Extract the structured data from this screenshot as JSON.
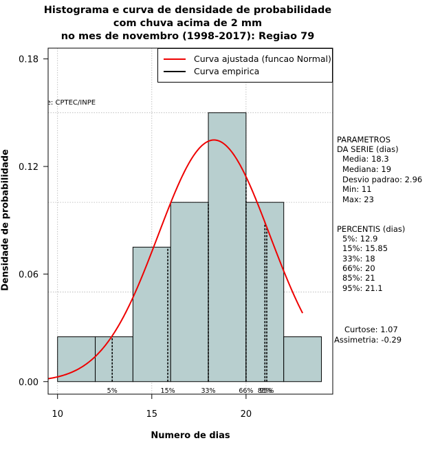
{
  "chart_data": {
    "type": "bar",
    "title_lines": [
      "Histograma e curva de densidade de probabilidade",
      "com chuva acima de 2 mm",
      "no mes de novembro (1998-2017): Regiao 79"
    ],
    "xlabel": "Numero de dias",
    "ylabel": "Densidade de probabilidade",
    "xlim": [
      9.5,
      24.6
    ],
    "ylim": [
      -0.007,
      0.186
    ],
    "x_ticks": [
      10,
      15,
      20
    ],
    "y_ticks": [
      0.0,
      0.06,
      0.12,
      0.18
    ],
    "y_tick_labels": [
      "0.00",
      "0.06",
      "0.12",
      "0.18"
    ],
    "grid": true,
    "bar_color": "#b8cfcf",
    "bins": [
      {
        "x0": 10,
        "x1": 12,
        "density": 0.025
      },
      {
        "x0": 12,
        "x1": 14,
        "density": 0.025
      },
      {
        "x0": 14,
        "x1": 16,
        "density": 0.075
      },
      {
        "x0": 16,
        "x1": 18,
        "density": 0.1
      },
      {
        "x0": 18,
        "x1": 20,
        "density": 0.15
      },
      {
        "x0": 20,
        "x1": 22,
        "density": 0.1
      },
      {
        "x0": 22,
        "x1": 24,
        "density": 0.025
      }
    ],
    "normal_fit": {
      "mean": 18.3,
      "sd": 2.96,
      "x_from": 9.5,
      "x_to": 23.0,
      "color": "#ee0000"
    },
    "percentile_lines": [
      {
        "label": "5%",
        "x": 12.9
      },
      {
        "label": "15%",
        "x": 15.85
      },
      {
        "label": "33%",
        "x": 18
      },
      {
        "label": "66%",
        "x": 20
      },
      {
        "label": "85%",
        "x": 21
      },
      {
        "label": "95%",
        "x": 21.1
      }
    ],
    "legend": {
      "placement": "top-right",
      "entries": [
        {
          "label": "Curva ajustada (funcao Normal)",
          "color": "#ee0000"
        },
        {
          "label": "Curva empirica",
          "color": "#000000"
        }
      ]
    },
    "source_text": "Fonte: CPTEC/INPE",
    "parameters": {
      "heading1": "PARAMETROS",
      "heading2": "DA SERIE (dias)",
      "media": "Media: 18.3",
      "mediana": "Mediana: 19",
      "desvio": "Desvio padrao: 2.96",
      "min": "Min: 11",
      "max": "Max: 23"
    },
    "percentis": {
      "heading": "PERCENTIS (dias)",
      "p5": "5%: 12.9",
      "p15": "15%: 15.85",
      "p33": "33%: 18",
      "p66": "66%: 20",
      "p85": "85%: 21",
      "p95": "95%: 21.1"
    },
    "shape": {
      "curtose": "Curtose: 1.07",
      "assimetria": "Assimetria: -0.29"
    }
  }
}
